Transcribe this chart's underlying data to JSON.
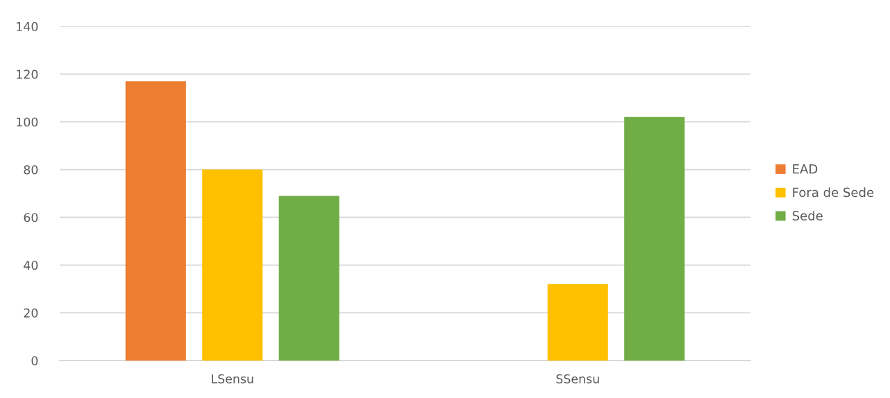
{
  "chart_data": {
    "type": "bar",
    "categories": [
      "LSensu",
      "SSensu"
    ],
    "series": [
      {
        "name": "EAD",
        "color": "#ed7d31",
        "values": [
          117,
          null
        ]
      },
      {
        "name": "Fora de Sede",
        "color": "#ffc000",
        "values": [
          80,
          32
        ]
      },
      {
        "name": "Sede",
        "color": "#70ad47",
        "values": [
          69,
          102
        ]
      }
    ],
    "ylim": [
      0,
      140
    ],
    "yticks": [
      0,
      20,
      40,
      60,
      80,
      100,
      120,
      140
    ],
    "grid": "y",
    "legend": "right"
  }
}
